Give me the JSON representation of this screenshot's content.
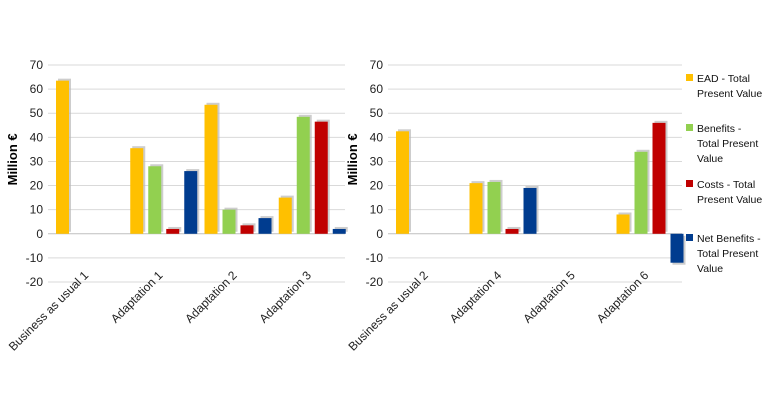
{
  "chart_data": [
    {
      "type": "bar",
      "ylabel": "Million €",
      "ylim": [
        -20,
        70
      ],
      "yticks": [
        "-20",
        "-10",
        "0",
        "10",
        "20",
        "30",
        "40",
        "50",
        "60",
        "70"
      ],
      "grid": true,
      "categories": [
        "Business as usual 1",
        "Adaptation 1",
        "Adaptation 2",
        "Adaptation 3"
      ],
      "series": [
        {
          "values": [
            63.5,
            35.5,
            53.5,
            15
          ]
        },
        {
          "values": [
            null,
            28,
            10,
            48.5
          ]
        },
        {
          "values": [
            null,
            2,
            3.5,
            46.5
          ]
        },
        {
          "values": [
            null,
            26,
            6.5,
            2
          ]
        }
      ]
    },
    {
      "type": "bar",
      "ylabel": "Million €",
      "ylim": [
        -20,
        70
      ],
      "yticks": [
        "-20",
        "-10",
        "0",
        "10",
        "20",
        "30",
        "40",
        "50",
        "60",
        "70"
      ],
      "grid": true,
      "categories": [
        "Business as usual 2",
        "Adaptation 4",
        "Adaptation 5",
        "Adaptation 6"
      ],
      "series": [
        {
          "name": "EAD - Total Present Value",
          "values": [
            42.5,
            21,
            null,
            8
          ]
        },
        {
          "name": "Benefits - Total Present Value",
          "values": [
            null,
            21.5,
            null,
            34
          ]
        },
        {
          "name": "Costs - Total Present Value",
          "values": [
            null,
            2,
            null,
            46
          ]
        },
        {
          "name": "Net Benefits - Total Present Value",
          "values": [
            null,
            19,
            null,
            -12
          ]
        }
      ],
      "legend_position": "right"
    }
  ],
  "legend": {
    "items": [
      {
        "line1": "EAD - Total",
        "line2": "Present Value",
        "line3": ""
      },
      {
        "line1": "Benefits -",
        "line2": "Total Present",
        "line3": "Value"
      },
      {
        "line1": "Costs - Total",
        "line2": "Present Value",
        "line3": ""
      },
      {
        "line1": "Net Benefits -",
        "line2": "Total Present",
        "line3": "Value"
      }
    ]
  },
  "colors": {
    "series": [
      "#FFC000",
      "#92D050",
      "#C00000",
      "#003C8F"
    ],
    "grid": "#D9D9D9",
    "axis": "#BFBFBF",
    "shadow": "#B8B8B8"
  }
}
